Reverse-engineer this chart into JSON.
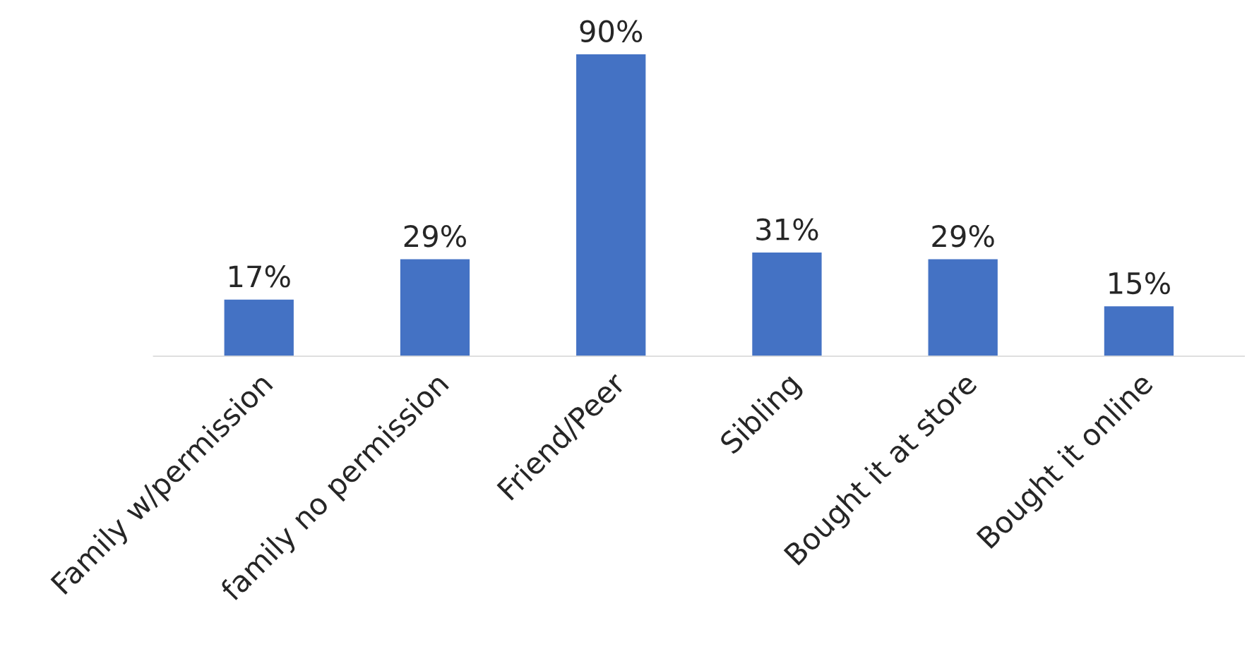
{
  "chart_data": {
    "type": "bar",
    "categories": [
      "Family w/permission",
      "family no permission",
      "Friend/Peer",
      "Sibling",
      "Bought it at store",
      "Bought it online"
    ],
    "values": [
      17,
      29,
      90,
      31,
      29,
      15
    ],
    "value_labels": [
      "17%",
      "29%",
      "90%",
      "31%",
      "29%",
      "15%"
    ],
    "color": "#4472c4",
    "grid": false,
    "legend": false
  }
}
